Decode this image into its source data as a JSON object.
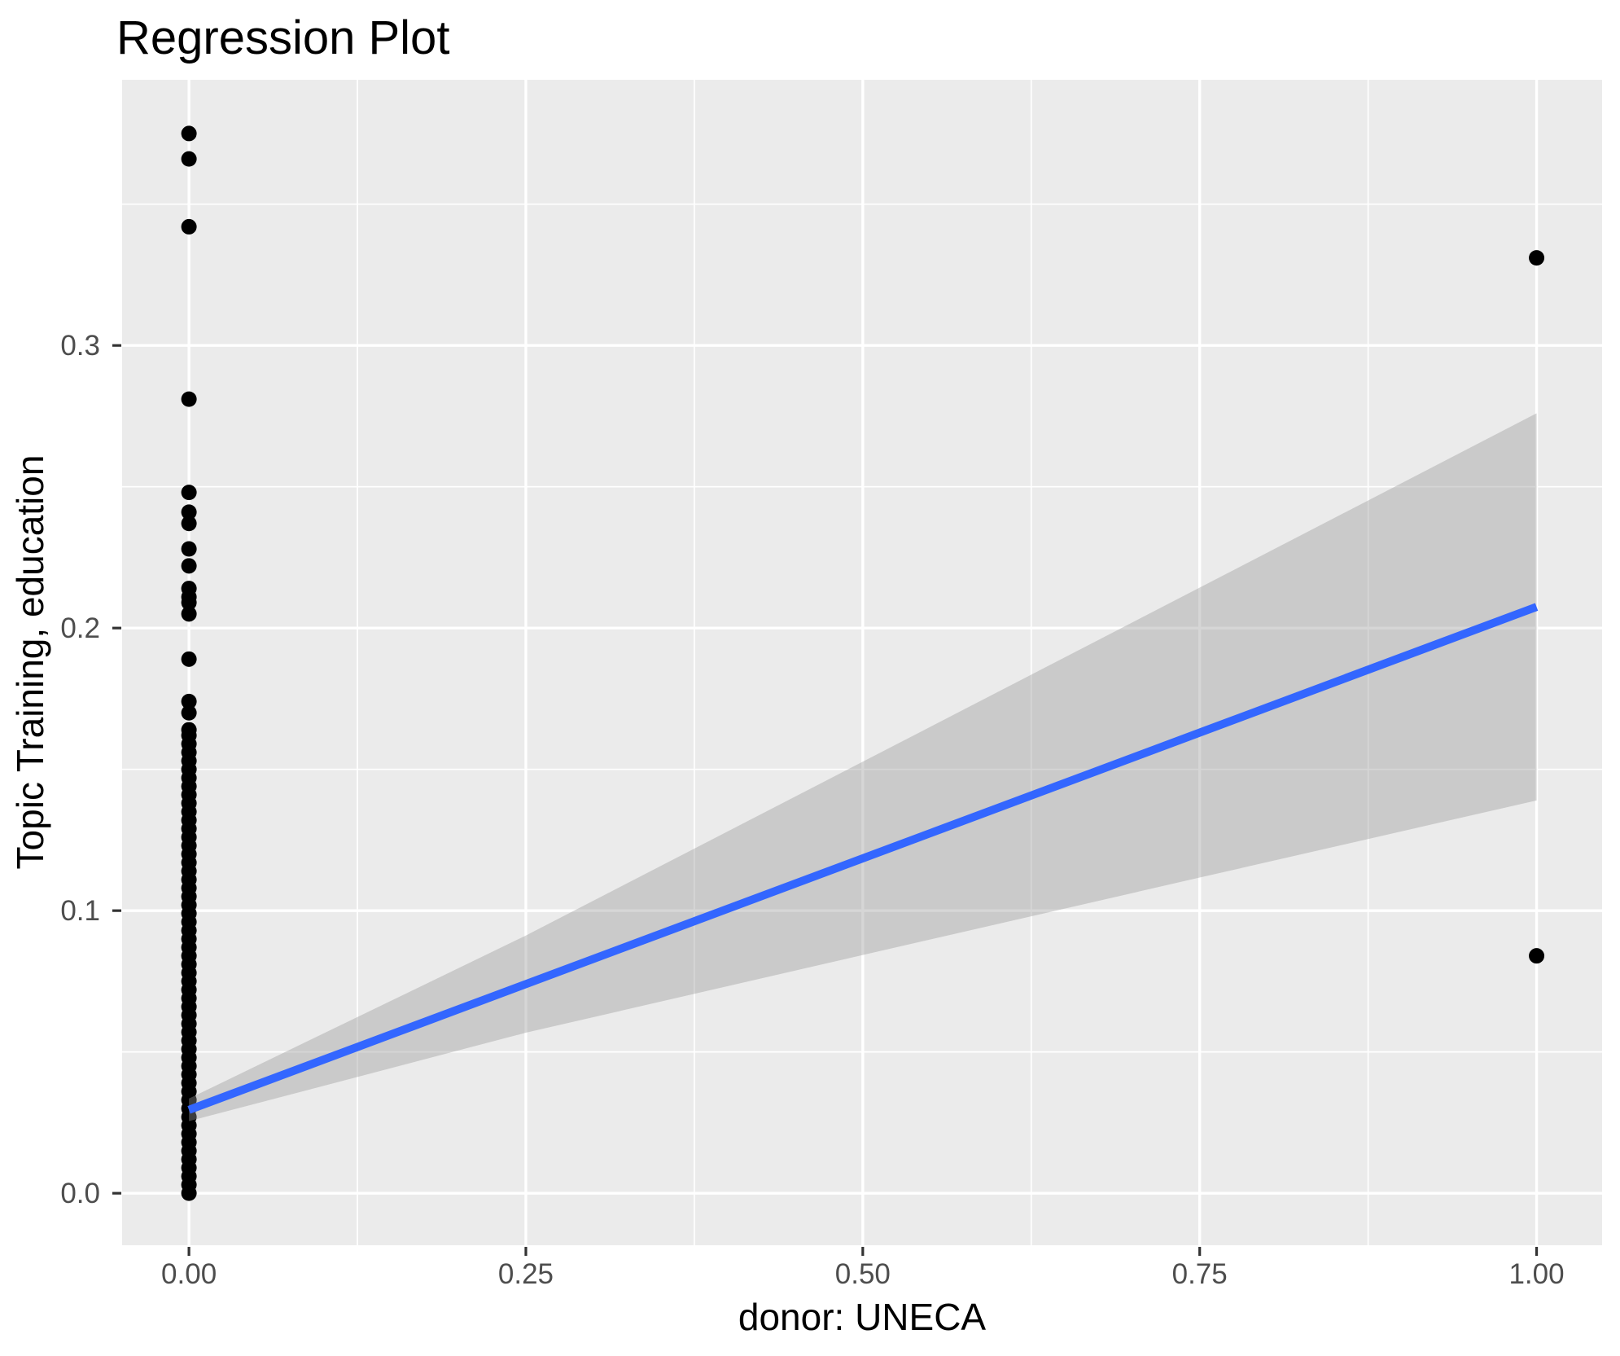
{
  "chart_data": {
    "type": "scatter",
    "title": "Regression Plot",
    "xlabel": "donor: UNECA",
    "ylabel": "Topic Training, education",
    "grid": true,
    "legend_position": "none",
    "xlim": [
      -0.0496,
      1.0486
    ],
    "ylim": [
      -0.0184,
      0.394
    ],
    "x_ticks": {
      "values": [
        0,
        0.25,
        0.5,
        0.75,
        1.0
      ],
      "labels": [
        "0.00",
        "0.25",
        "0.50",
        "0.75",
        "1.00"
      ]
    },
    "y_ticks": {
      "values": [
        0,
        0.1,
        0.2,
        0.3
      ],
      "labels": [
        "0.0",
        "0.1",
        "0.2",
        "0.3"
      ]
    },
    "x_minor_gridlines": [
      0.125,
      0.375,
      0.625,
      0.875
    ],
    "y_minor_gridlines": [
      0.05,
      0.15,
      0.25,
      0.35
    ],
    "points": [
      {
        "x": 0,
        "y_values": [
          0.0,
          0.003,
          0.006,
          0.009,
          0.012,
          0.015,
          0.018,
          0.021,
          0.024,
          0.027,
          0.03,
          0.033,
          0.036,
          0.039,
          0.042,
          0.045,
          0.048,
          0.051,
          0.054,
          0.057,
          0.06,
          0.063,
          0.066,
          0.069,
          0.072,
          0.075,
          0.078,
          0.081,
          0.084,
          0.087,
          0.09,
          0.093,
          0.096,
          0.099,
          0.102,
          0.105,
          0.108,
          0.111,
          0.114,
          0.117,
          0.12,
          0.123,
          0.126,
          0.129,
          0.132,
          0.135,
          0.138,
          0.141,
          0.144,
          0.147,
          0.15,
          0.153,
          0.156,
          0.159,
          0.162,
          0.164,
          0.17,
          0.174,
          0.189,
          0.205,
          0.209,
          0.211,
          0.214,
          0.222,
          0.228,
          0.237,
          0.241,
          0.248,
          0.281,
          0.342,
          0.366,
          0.375
        ]
      },
      {
        "x": 1,
        "y_values": [
          0.331,
          0.084
        ]
      }
    ],
    "regression": {
      "method": "lm",
      "line": {
        "x": [
          0,
          1
        ],
        "y": [
          0.0295,
          0.2075
        ]
      },
      "ci_band": {
        "x": [
          0,
          0.25,
          0.5,
          0.75,
          1.0
        ],
        "upper": [
          0.0335,
          0.0912,
          0.1527,
          0.2143,
          0.276
        ],
        "lower": [
          0.0255,
          0.0568,
          0.0843,
          0.1117,
          0.139
        ]
      }
    },
    "style": {
      "panel_background": "#EBEBEB",
      "gridline_color": "#FFFFFF",
      "point_color": "#000000",
      "point_radius": 9.5,
      "smooth_line_color": "#3366FF",
      "smooth_line_width": 10,
      "ci_band_color": "#999999",
      "ci_band_opacity": 0.4,
      "tick_label_color": "#4D4D4D",
      "tick_mark_color": "#333333",
      "title_color": "#000000"
    }
  }
}
